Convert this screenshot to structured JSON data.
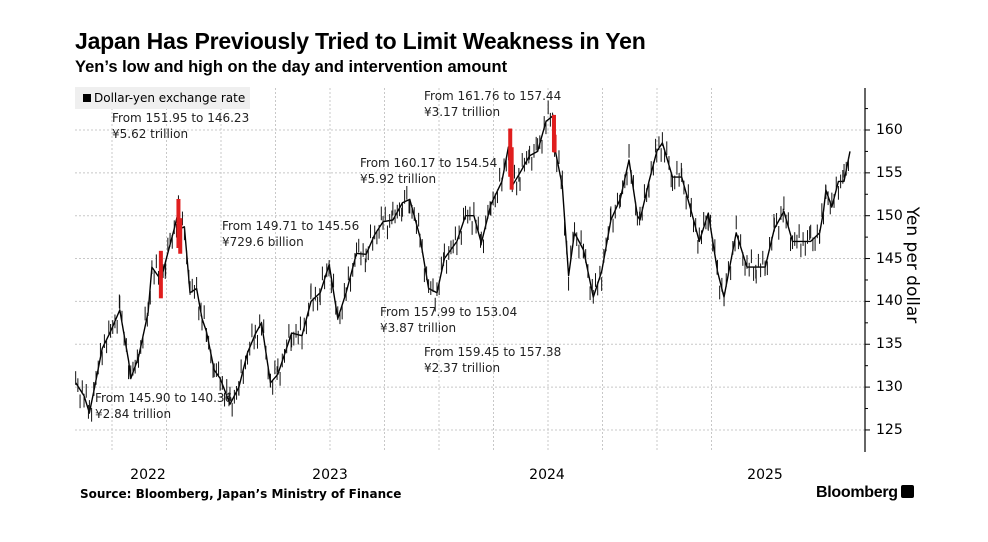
{
  "title": "Japan Has Previously Tried to Limit Weakness in Yen",
  "subtitle": "Yen’s low and high on the day and intervention amount",
  "source": "Source: Bloomberg, Japan’s Ministry of Finance",
  "logo": "Bloomberg",
  "chart_data": {
    "type": "line",
    "title": "Japan Has Previously Tried to Limit Weakness in Yen",
    "subtitle": "Yen’s low and high on the day and intervention amount",
    "ylabel": "Yen per dollar",
    "y_axis_side": "right",
    "ylim": [
      123,
      165
    ],
    "yticks": [
      125,
      130,
      135,
      140,
      145,
      150,
      155,
      160
    ],
    "xticks": [
      "2022",
      "2023",
      "2024",
      "2025"
    ],
    "grid": true,
    "legend_placement": "top-left",
    "colors": {
      "series": "#000000",
      "intervention": "#e01e1e"
    },
    "series": [
      {
        "name": "Dollar-yen exchange rate",
        "points": [
          [
            "2022-05-01",
            130.5
          ],
          [
            "2022-05-15",
            129
          ],
          [
            "2022-05-24",
            127
          ],
          [
            "2022-06-01",
            129.5
          ],
          [
            "2022-06-15",
            134.5
          ],
          [
            "2022-06-29",
            136.5
          ],
          [
            "2022-07-14",
            139
          ],
          [
            "2022-07-29",
            133
          ],
          [
            "2022-08-02",
            131
          ],
          [
            "2022-08-15",
            133.5
          ],
          [
            "2022-08-31",
            138.7
          ],
          [
            "2022-09-07",
            144
          ],
          [
            "2022-09-22",
            142.5
          ],
          [
            "2022-09-30",
            144.7
          ],
          [
            "2022-10-14",
            148.5
          ],
          [
            "2022-10-21",
            150.5
          ],
          [
            "2022-10-24",
            148.5
          ],
          [
            "2022-10-31",
            148.7
          ],
          [
            "2022-11-10",
            141
          ],
          [
            "2022-11-21",
            141.5
          ],
          [
            "2022-11-30",
            138
          ],
          [
            "2022-12-07",
            136.5
          ],
          [
            "2022-12-20",
            132
          ],
          [
            "2022-12-30",
            131
          ],
          [
            "2023-01-16",
            128
          ],
          [
            "2023-01-31",
            130
          ],
          [
            "2023-02-15",
            134
          ],
          [
            "2023-02-28",
            136.2
          ],
          [
            "2023-03-08",
            137.5
          ],
          [
            "2023-03-23",
            130.5
          ],
          [
            "2023-04-05",
            131.5
          ],
          [
            "2023-04-28",
            136.3
          ],
          [
            "2023-05-15",
            136
          ],
          [
            "2023-05-30",
            140
          ],
          [
            "2023-06-15",
            141
          ],
          [
            "2023-06-30",
            144.3
          ],
          [
            "2023-07-14",
            138
          ],
          [
            "2023-07-28",
            141
          ],
          [
            "2023-08-15",
            145.6
          ],
          [
            "2023-08-31",
            145.5
          ],
          [
            "2023-09-15",
            147.8
          ],
          [
            "2023-09-29",
            149.3
          ],
          [
            "2023-10-15",
            149.5
          ],
          [
            "2023-10-31",
            151.5
          ],
          [
            "2023-11-13",
            151.9
          ],
          [
            "2023-11-30",
            147.5
          ],
          [
            "2023-12-14",
            141.5
          ],
          [
            "2023-12-28",
            141
          ],
          [
            "2024-01-10",
            145
          ],
          [
            "2024-01-31",
            147
          ],
          [
            "2024-02-15",
            150
          ],
          [
            "2024-02-29",
            150
          ],
          [
            "2024-03-11",
            146.8
          ],
          [
            "2024-03-27",
            151.3
          ],
          [
            "2024-04-15",
            154
          ],
          [
            "2024-04-26",
            158
          ],
          [
            "2024-04-29",
            156
          ],
          [
            "2024-05-02",
            153.5
          ],
          [
            "2024-05-15",
            155
          ],
          [
            "2024-05-31",
            157
          ],
          [
            "2024-06-14",
            157.5
          ],
          [
            "2024-06-28",
            161
          ],
          [
            "2024-07-10",
            161.7
          ],
          [
            "2024-07-12",
            158
          ],
          [
            "2024-07-25",
            153.5
          ],
          [
            "2024-08-05",
            143
          ],
          [
            "2024-08-15",
            148
          ],
          [
            "2024-08-30",
            146
          ],
          [
            "2024-09-16",
            140.5
          ],
          [
            "2024-09-30",
            143.5
          ],
          [
            "2024-10-15",
            149.5
          ],
          [
            "2024-10-31",
            152
          ],
          [
            "2024-11-15",
            156.5
          ],
          [
            "2024-11-29",
            150
          ],
          [
            "2024-12-03",
            149.5
          ],
          [
            "2024-12-18",
            154
          ],
          [
            "2024-12-31",
            157.5
          ],
          [
            "2025-01-10",
            158.5
          ],
          [
            "2025-01-27",
            154.5
          ],
          [
            "2025-02-12",
            154.5
          ],
          [
            "2025-02-28",
            150.5
          ],
          [
            "2025-03-11",
            147
          ],
          [
            "2025-03-26",
            150.3
          ],
          [
            "2025-04-11",
            143.5
          ],
          [
            "2025-04-22",
            140.5
          ],
          [
            "2025-05-12",
            148
          ],
          [
            "2025-05-30",
            144
          ],
          [
            "2025-06-15",
            144
          ],
          [
            "2025-06-30",
            144
          ],
          [
            "2025-07-15",
            148.5
          ],
          [
            "2025-07-31",
            150.5
          ],
          [
            "2025-08-15",
            147
          ],
          [
            "2025-08-29",
            147
          ],
          [
            "2025-09-15",
            147
          ],
          [
            "2025-09-30",
            148
          ],
          [
            "2025-10-06",
            150.5
          ],
          [
            "2025-10-10",
            153
          ],
          [
            "2025-10-20",
            151
          ],
          [
            "2025-10-31",
            154
          ],
          [
            "2025-11-10",
            154
          ],
          [
            "2025-11-20",
            157.5
          ]
        ]
      }
    ],
    "interventions": [
      {
        "date": "2022-09-22",
        "from": 145.9,
        "to": 140.36,
        "amount": "¥2.84 trillion"
      },
      {
        "date": "2022-10-21",
        "from": 151.95,
        "to": 146.23,
        "amount": "¥5.62 trillion"
      },
      {
        "date": "2022-10-24",
        "from": 149.71,
        "to": 145.56,
        "amount": "¥729.6 billion"
      },
      {
        "date": "2024-04-29",
        "from": 160.17,
        "to": 154.54,
        "amount": "¥5.92 trillion"
      },
      {
        "date": "2024-05-01",
        "from": 157.99,
        "to": 153.04,
        "amount": "¥3.87 trillion"
      },
      {
        "date": "2024-07-11",
        "from": 161.76,
        "to": 157.44,
        "amount": "¥3.17 trillion"
      },
      {
        "date": "2024-07-12",
        "from": 159.45,
        "to": 157.38,
        "amount": "¥2.37 trillion"
      }
    ],
    "annotations": [
      {
        "line1": "From 151.95 to 146.23",
        "line2": "¥5.62 trillion"
      },
      {
        "line1": "From 149.71 to 145.56",
        "line2": "¥729.6 billion"
      },
      {
        "line1": "From 145.90 to 140.36",
        "line2": "¥2.84 trillion"
      },
      {
        "line1": "From 160.17 to 154.54",
        "line2": "¥5.92 trillion"
      },
      {
        "line1": "From 161.76 to 157.44",
        "line2": "¥3.17 trillion"
      },
      {
        "line1": "From 157.99 to 153.04",
        "line2": "¥3.87 trillion"
      },
      {
        "line1": "From 159.45 to 157.38",
        "line2": "¥2.37 trillion"
      }
    ]
  }
}
